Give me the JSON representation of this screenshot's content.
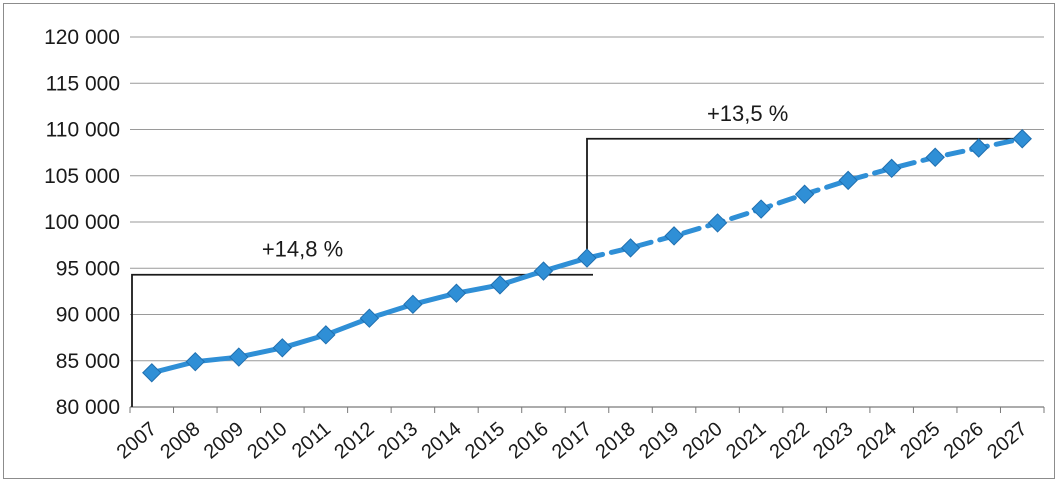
{
  "chart_data": {
    "type": "line",
    "title": "",
    "xlabel": "",
    "ylabel": "",
    "ylim": [
      80000,
      120000
    ],
    "y_ticks": [
      "80 000",
      "85 000",
      "90 000",
      "95 000",
      "100 000",
      "105 000",
      "110 000",
      "115 000",
      "120 000"
    ],
    "y_tick_values": [
      80000,
      85000,
      90000,
      95000,
      100000,
      105000,
      110000,
      115000,
      120000
    ],
    "categories": [
      "2007",
      "2008",
      "2009",
      "2010",
      "2011",
      "2012",
      "2013",
      "2014",
      "2015",
      "2016",
      "2017",
      "2018",
      "2019",
      "2020",
      "2021",
      "2022",
      "2023",
      "2024",
      "2025",
      "2026",
      "2027"
    ],
    "grid": true,
    "legend": "none",
    "series": [
      {
        "style": "solid",
        "color": "#2f8fd6",
        "x": [
          "2007",
          "2008",
          "2009",
          "2010",
          "2011",
          "2012",
          "2013",
          "2014",
          "2015",
          "2016",
          "2017"
        ],
        "values": [
          83700,
          84900,
          85400,
          86400,
          87800,
          89600,
          91100,
          92300,
          93200,
          94700,
          96100
        ]
      },
      {
        "style": "dashed",
        "color": "#2f8fd6",
        "x": [
          "2017",
          "2018",
          "2019",
          "2020",
          "2021",
          "2022",
          "2023",
          "2024",
          "2025",
          "2026",
          "2027"
        ],
        "values": [
          96100,
          97200,
          98500,
          99900,
          101400,
          103000,
          104500,
          105800,
          107000,
          108000,
          109000
        ]
      }
    ],
    "annotations": [
      {
        "text": "+14,8 %",
        "from_category": "2007",
        "to_category": "2017",
        "start_value": 80000,
        "level_value": 94300
      },
      {
        "text": "+13,5 %",
        "from_category": "2017",
        "to_category": "2027",
        "start_value": 96100,
        "level_value": 109000
      }
    ]
  }
}
